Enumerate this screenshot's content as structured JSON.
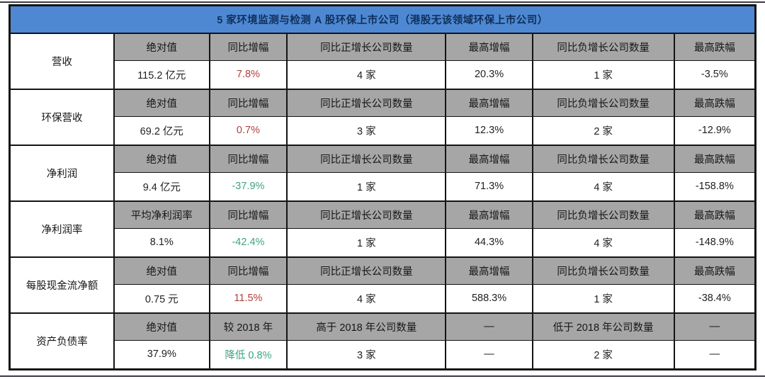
{
  "title": "5 家环境监测与检测 A 股环保上市公司（港股无该领域环保上市公司）",
  "colors": {
    "header_bg": "#4e88d2",
    "header_text": "#0f2f5c",
    "subheader_bg": "#a6a6a6",
    "border": "#141414",
    "up": "#b0403d",
    "down": "#3ca57c",
    "text": "#1f1f1f"
  },
  "groups": [
    {
      "label": "营收",
      "headers": [
        "绝对值",
        "同比增幅",
        "同比正增长公司数量",
        "最高增幅",
        "同比负增长公司数量",
        "最高跌幅"
      ],
      "values": [
        {
          "text": "115.2 亿元",
          "color": "default"
        },
        {
          "text": "7.8%",
          "color": "up"
        },
        {
          "text": "4 家",
          "color": "default"
        },
        {
          "text": "20.3%",
          "color": "default"
        },
        {
          "text": "1 家",
          "color": "default"
        },
        {
          "text": "-3.5%",
          "color": "default"
        }
      ]
    },
    {
      "label": "环保营收",
      "headers": [
        "绝对值",
        "同比增幅",
        "同比正增长公司数量",
        "最高增幅",
        "同比负增长公司数量",
        "最高跌幅"
      ],
      "values": [
        {
          "text": "69.2 亿元",
          "color": "default"
        },
        {
          "text": "0.7%",
          "color": "up"
        },
        {
          "text": "3 家",
          "color": "default"
        },
        {
          "text": "12.3%",
          "color": "default"
        },
        {
          "text": "2 家",
          "color": "default"
        },
        {
          "text": "-12.9%",
          "color": "default"
        }
      ]
    },
    {
      "label": "净利润",
      "headers": [
        "绝对值",
        "同比增幅",
        "同比正增长公司数量",
        "最高增幅",
        "同比负增长公司数量",
        "最高跌幅"
      ],
      "values": [
        {
          "text": "9.4 亿元",
          "color": "default"
        },
        {
          "text": "-37.9%",
          "color": "down"
        },
        {
          "text": "1 家",
          "color": "default"
        },
        {
          "text": "71.3%",
          "color": "default"
        },
        {
          "text": "4 家",
          "color": "default"
        },
        {
          "text": "-158.8%",
          "color": "default"
        }
      ]
    },
    {
      "label": "净利润率",
      "headers": [
        "平均净利润率",
        "同比增幅",
        "同比正增长公司数量",
        "最高增幅",
        "同比负增长公司数量",
        "最高跌幅"
      ],
      "values": [
        {
          "text": "8.1%",
          "color": "default"
        },
        {
          "text": "-42.4%",
          "color": "down"
        },
        {
          "text": "1 家",
          "color": "default"
        },
        {
          "text": "44.3%",
          "color": "default"
        },
        {
          "text": "4 家",
          "color": "default"
        },
        {
          "text": "-148.9%",
          "color": "default"
        }
      ]
    },
    {
      "label": "每股现金流净额",
      "headers": [
        "绝对值",
        "同比增幅",
        "同比正增长公司数量",
        "最高增幅",
        "同比负增长公司数量",
        "最高跌幅"
      ],
      "values": [
        {
          "text": "0.75 元",
          "color": "default"
        },
        {
          "text": "11.5%",
          "color": "up"
        },
        {
          "text": "4 家",
          "color": "default"
        },
        {
          "text": "588.3%",
          "color": "default"
        },
        {
          "text": "1 家",
          "color": "default"
        },
        {
          "text": "-38.4%",
          "color": "default"
        }
      ]
    },
    {
      "label": "资产负债率",
      "headers": [
        "绝对值",
        "较 2018 年",
        "高于 2018 年公司数量",
        "—",
        "低于 2018 年公司数量",
        "—"
      ],
      "values": [
        {
          "text": "37.9%",
          "color": "default"
        },
        {
          "text": "降低 0.8%",
          "color": "down"
        },
        {
          "text": "3 家",
          "color": "default"
        },
        {
          "text": "—",
          "color": "default"
        },
        {
          "text": "2 家",
          "color": "default"
        },
        {
          "text": "—",
          "color": "default"
        }
      ]
    }
  ],
  "column_width_percents": [
    14.0,
    12.8,
    10.4,
    21.3,
    11.6,
    19.0,
    10.9
  ]
}
